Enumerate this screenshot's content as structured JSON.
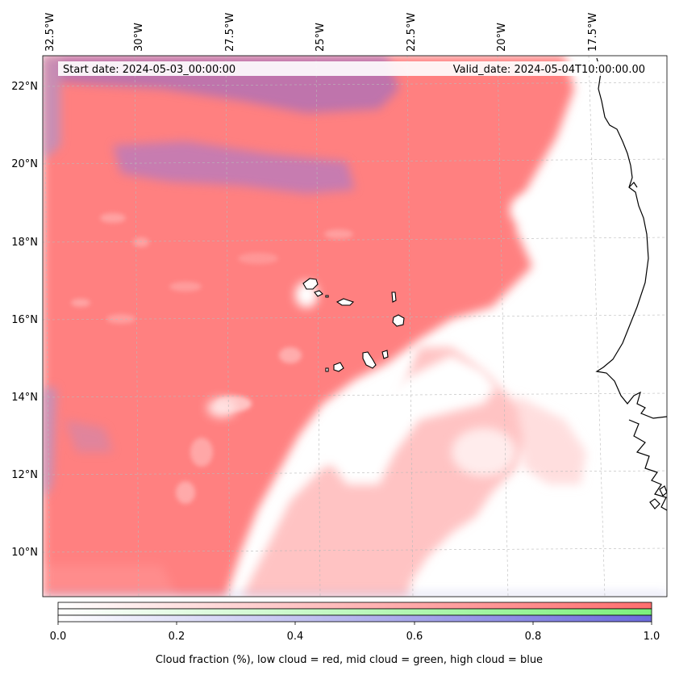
{
  "header": {
    "start_date": "Start date: 2024-05-03_00:00:00",
    "valid_date": "Valid_date: 2024-05-04T10:00:00.00"
  },
  "map": {
    "longitude_labels": [
      "32.5°W",
      "30°W",
      "27.5°W",
      "25°W",
      "22.5°W",
      "20°W",
      "17.5°W"
    ],
    "latitude_labels": [
      "22°N",
      "20°N",
      "18°N",
      "16°N",
      "14°N",
      "12°N",
      "10°N"
    ],
    "layers": {
      "low_cloud_color": "#ff8080",
      "mid_cloud_color": "#80ff80",
      "high_cloud_color": "#8080e0"
    }
  },
  "colorbar": {
    "ticks": [
      "0.0",
      "0.2",
      "0.4",
      "0.6",
      "0.8",
      "1.0"
    ],
    "label": "Cloud fraction (%), low cloud = red, mid cloud = green, high cloud = blue",
    "rows": [
      {
        "name": "low cloud",
        "color": "#ff6e6e"
      },
      {
        "name": "mid cloud",
        "color": "#7cf07c"
      },
      {
        "name": "high cloud",
        "color": "#6b6bdc"
      }
    ]
  }
}
